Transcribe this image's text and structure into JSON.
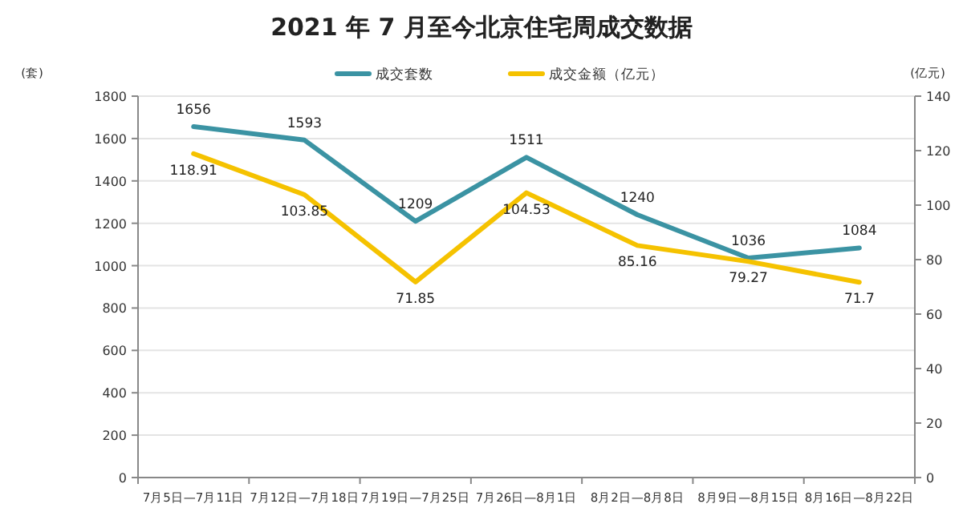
{
  "chart_data": {
    "type": "line",
    "title": "2021 年 7 月至今北京住宅周成交数据",
    "ylabel": "(套)",
    "y2label": "(亿元)",
    "categories": [
      "7月5日—7月11日",
      "7月12日—7月18日",
      "7月19日—7月25日",
      "7月26日—8月1日",
      "8月2日—8月8日",
      "8月9日—8月15日",
      "8月16日—8月22日"
    ],
    "series": [
      {
        "name": "成交套数",
        "color": "#3b93a3",
        "values": [
          1656,
          1593,
          1209,
          1511,
          1240,
          1036,
          1084
        ]
      },
      {
        "name": "成交金额（亿元）",
        "color": "#f5c200",
        "axis": "y2",
        "values": [
          118.91,
          103.85,
          71.85,
          104.53,
          85.16,
          79.27,
          71.7
        ]
      }
    ],
    "ylim": [
      0,
      1800
    ],
    "yticks": [
      0,
      200,
      400,
      600,
      800,
      1000,
      1200,
      1400,
      1600,
      1800
    ],
    "y2lim": [
      0,
      140
    ],
    "y2ticks": [
      0,
      20,
      40,
      60,
      80,
      100,
      120,
      140
    ],
    "grid": "y",
    "legend": "top",
    "data_labels": true,
    "marker": "none",
    "line_style": "solid"
  }
}
